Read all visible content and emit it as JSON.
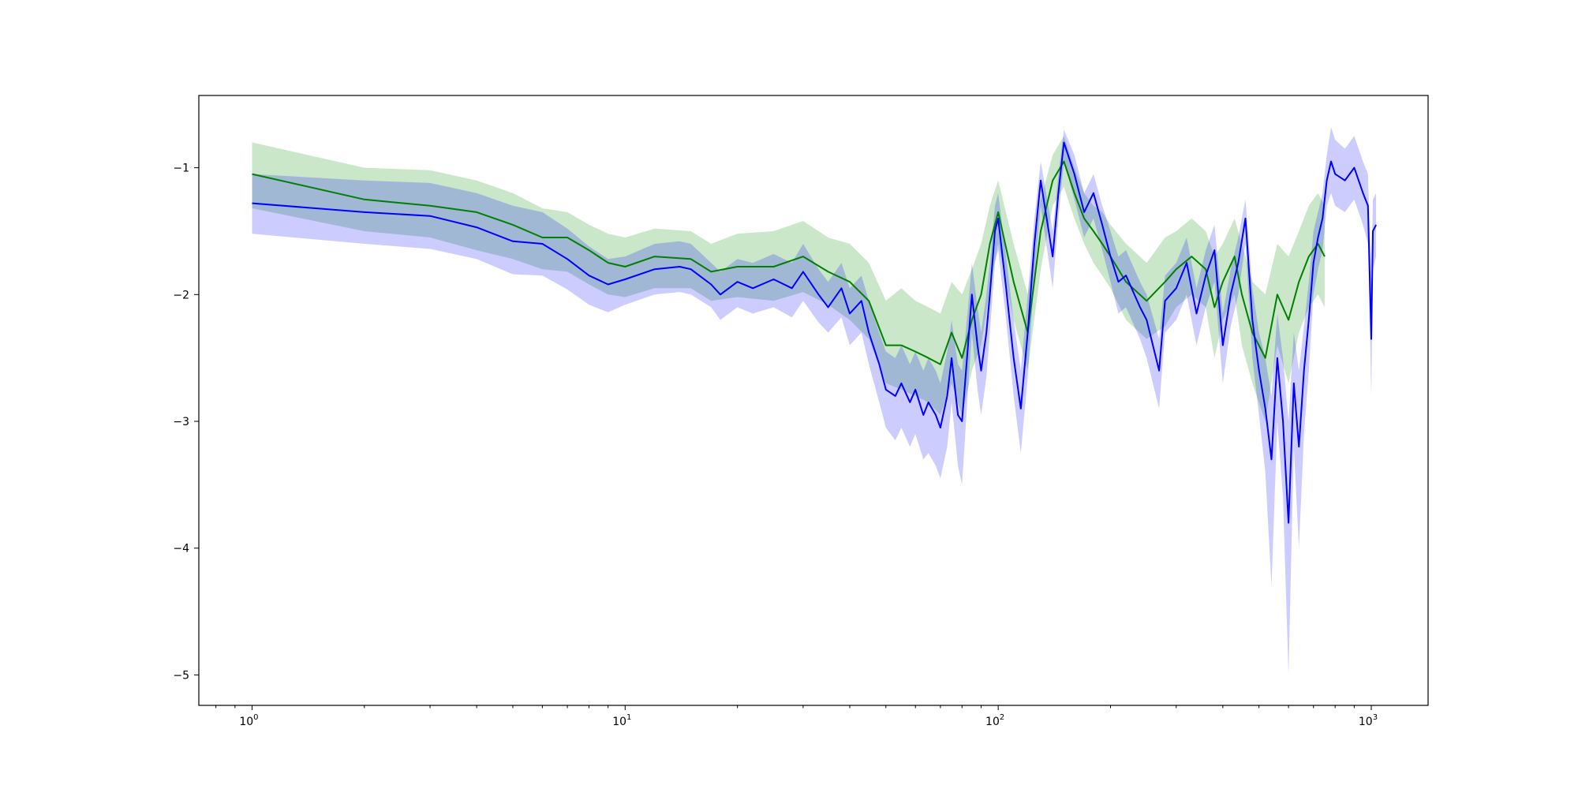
{
  "chart_data": {
    "type": "line",
    "title": "",
    "xlabel": "",
    "ylabel": "",
    "x_scale": "log",
    "xlim": [
      0.72,
      1420
    ],
    "ylim": [
      -5.24,
      -0.43
    ],
    "grid": false,
    "legend": "none",
    "x_ticks": [
      {
        "value": 1,
        "label": "10",
        "exp": "0"
      },
      {
        "value": 10,
        "label": "10",
        "exp": "1"
      },
      {
        "value": 100,
        "label": "10",
        "exp": "2"
      },
      {
        "value": 1000,
        "label": "10",
        "exp": "3"
      }
    ],
    "y_ticks": [
      {
        "value": -1,
        "label": "−1"
      },
      {
        "value": -2,
        "label": "−2"
      },
      {
        "value": -3,
        "label": "−3"
      },
      {
        "value": -4,
        "label": "−4"
      },
      {
        "value": -5,
        "label": "−5"
      }
    ],
    "series": [
      {
        "color": "#008000",
        "band_color": "#2ca02c",
        "band_opacity": 0.25,
        "x": [
          1,
          2,
          3,
          4,
          5,
          6,
          7,
          8,
          9,
          10,
          12,
          15,
          17,
          20,
          25,
          30,
          35,
          40,
          45,
          50,
          55,
          60,
          65,
          70,
          75,
          80,
          85,
          90,
          95,
          100,
          110,
          120,
          130,
          140,
          150,
          160,
          170,
          180,
          190,
          200,
          220,
          250,
          280,
          300,
          330,
          360,
          380,
          400,
          430,
          450,
          480,
          520,
          560,
          600,
          640,
          680,
          720,
          750
        ],
        "values": [
          -1.05,
          -1.25,
          -1.3,
          -1.35,
          -1.45,
          -1.55,
          -1.55,
          -1.65,
          -1.75,
          -1.78,
          -1.7,
          -1.72,
          -1.82,
          -1.78,
          -1.78,
          -1.7,
          -1.82,
          -1.9,
          -2.05,
          -2.4,
          -2.4,
          -2.45,
          -2.5,
          -2.55,
          -2.3,
          -2.5,
          -2.2,
          -2.0,
          -1.6,
          -1.35,
          -1.9,
          -2.3,
          -1.5,
          -1.1,
          -0.95,
          -1.2,
          -1.4,
          -1.5,
          -1.6,
          -1.7,
          -1.9,
          -2.05,
          -1.9,
          -1.8,
          -1.7,
          -1.8,
          -2.1,
          -1.9,
          -1.7,
          -2.0,
          -2.3,
          -2.5,
          -2.0,
          -2.2,
          -1.9,
          -1.7,
          -1.6,
          -1.7
        ],
        "upper": [
          -0.8,
          -1.0,
          -1.02,
          -1.1,
          -1.2,
          -1.32,
          -1.35,
          -1.45,
          -1.52,
          -1.55,
          -1.48,
          -1.5,
          -1.6,
          -1.52,
          -1.5,
          -1.42,
          -1.55,
          -1.6,
          -1.75,
          -2.05,
          -1.95,
          -2.05,
          -2.1,
          -2.15,
          -1.9,
          -2.0,
          -1.8,
          -1.6,
          -1.3,
          -1.1,
          -1.6,
          -2.0,
          -1.25,
          -0.9,
          -0.75,
          -1.0,
          -1.2,
          -1.3,
          -1.35,
          -1.45,
          -1.6,
          -1.75,
          -1.55,
          -1.5,
          -1.4,
          -1.5,
          -1.7,
          -1.6,
          -1.4,
          -1.6,
          -1.9,
          -2.0,
          -1.6,
          -1.7,
          -1.5,
          -1.3,
          -1.2,
          -1.3
        ],
        "lower": [
          -1.32,
          -1.5,
          -1.55,
          -1.65,
          -1.72,
          -1.8,
          -1.82,
          -1.92,
          -2.0,
          -2.02,
          -1.95,
          -1.95,
          -2.05,
          -2.02,
          -2.05,
          -1.98,
          -2.08,
          -2.2,
          -2.35,
          -2.7,
          -2.75,
          -2.8,
          -2.85,
          -2.95,
          -2.7,
          -2.95,
          -2.6,
          -2.4,
          -1.95,
          -1.6,
          -2.2,
          -2.6,
          -1.8,
          -1.3,
          -1.15,
          -1.4,
          -1.6,
          -1.75,
          -1.85,
          -1.95,
          -2.2,
          -2.35,
          -2.25,
          -2.1,
          -2.0,
          -2.1,
          -2.5,
          -2.2,
          -2.0,
          -2.4,
          -2.7,
          -3.0,
          -2.4,
          -2.7,
          -2.3,
          -2.1,
          -2.0,
          -2.1
        ]
      },
      {
        "color": "#0000ff",
        "band_color": "#0000ff",
        "band_opacity": 0.2,
        "x": [
          1,
          2,
          3,
          4,
          5,
          6,
          7,
          8,
          9,
          10,
          12,
          14,
          15,
          17,
          18,
          20,
          22,
          25,
          28,
          30,
          33,
          35,
          38,
          40,
          43,
          45,
          48,
          50,
          53,
          55,
          58,
          60,
          63,
          65,
          68,
          70,
          73,
          75,
          78,
          80,
          83,
          85,
          88,
          90,
          93,
          95,
          98,
          100,
          105,
          110,
          115,
          120,
          125,
          130,
          140,
          145,
          150,
          160,
          170,
          180,
          190,
          200,
          210,
          220,
          240,
          250,
          270,
          280,
          300,
          320,
          340,
          360,
          380,
          400,
          420,
          440,
          460,
          480,
          500,
          520,
          540,
          560,
          580,
          600,
          620,
          640,
          660,
          680,
          700,
          720,
          740,
          760,
          780,
          800,
          850,
          900,
          950,
          980,
          1000,
          1010,
          1030
        ],
        "values": [
          -1.28,
          -1.35,
          -1.38,
          -1.47,
          -1.58,
          -1.6,
          -1.72,
          -1.85,
          -1.92,
          -1.88,
          -1.8,
          -1.78,
          -1.8,
          -1.92,
          -2.0,
          -1.9,
          -1.95,
          -1.88,
          -1.95,
          -1.82,
          -2.0,
          -2.1,
          -1.95,
          -2.15,
          -2.05,
          -2.3,
          -2.55,
          -2.75,
          -2.8,
          -2.7,
          -2.85,
          -2.75,
          -2.95,
          -2.85,
          -2.95,
          -3.05,
          -2.8,
          -2.5,
          -2.95,
          -3.0,
          -2.4,
          -2.0,
          -2.4,
          -2.6,
          -2.3,
          -2.0,
          -1.5,
          -1.4,
          -1.95,
          -2.5,
          -2.9,
          -2.3,
          -1.6,
          -1.1,
          -1.7,
          -1.2,
          -0.8,
          -1.05,
          -1.35,
          -1.2,
          -1.45,
          -1.7,
          -1.9,
          -1.85,
          -2.1,
          -2.2,
          -2.6,
          -2.05,
          -1.95,
          -1.75,
          -2.15,
          -1.85,
          -1.65,
          -2.4,
          -2.0,
          -1.75,
          -1.4,
          -2.2,
          -2.6,
          -2.9,
          -3.3,
          -2.5,
          -3.0,
          -3.8,
          -2.7,
          -3.2,
          -2.6,
          -2.2,
          -1.75,
          -1.55,
          -1.4,
          -1.1,
          -0.95,
          -1.05,
          -1.1,
          -1.0,
          -1.2,
          -1.3,
          -2.35,
          -1.5,
          -1.45
        ],
        "upper": [
          -1.05,
          -1.1,
          -1.12,
          -1.2,
          -1.3,
          -1.35,
          -1.48,
          -1.62,
          -1.72,
          -1.7,
          -1.6,
          -1.58,
          -1.6,
          -1.75,
          -1.82,
          -1.72,
          -1.75,
          -1.68,
          -1.75,
          -1.6,
          -1.8,
          -1.9,
          -1.75,
          -1.95,
          -1.85,
          -2.05,
          -2.3,
          -2.45,
          -2.5,
          -2.4,
          -2.55,
          -2.45,
          -2.6,
          -2.5,
          -2.6,
          -2.7,
          -2.45,
          -2.2,
          -2.55,
          -2.6,
          -2.1,
          -1.75,
          -2.1,
          -2.3,
          -2.0,
          -1.75,
          -1.3,
          -1.2,
          -1.7,
          -2.2,
          -2.6,
          -2.0,
          -1.4,
          -0.95,
          -1.5,
          -1.05,
          -0.7,
          -0.9,
          -1.2,
          -1.05,
          -1.3,
          -1.5,
          -1.7,
          -1.65,
          -1.9,
          -2.0,
          -2.35,
          -1.85,
          -1.75,
          -1.55,
          -1.95,
          -1.65,
          -1.45,
          -2.15,
          -1.8,
          -1.55,
          -1.25,
          -1.95,
          -2.3,
          -2.5,
          -2.8,
          -2.15,
          -2.5,
          -3.0,
          -2.3,
          -2.6,
          -2.25,
          -1.9,
          -1.5,
          -1.35,
          -1.2,
          -0.9,
          -0.68,
          -0.78,
          -0.85,
          -0.75,
          -0.95,
          -1.05,
          -1.95,
          -1.25,
          -1.2
        ],
        "lower": [
          -1.52,
          -1.6,
          -1.64,
          -1.72,
          -1.84,
          -1.85,
          -1.96,
          -2.08,
          -2.14,
          -2.08,
          -2.0,
          -1.98,
          -2.0,
          -2.1,
          -2.2,
          -2.1,
          -2.15,
          -2.1,
          -2.18,
          -2.05,
          -2.22,
          -2.3,
          -2.18,
          -2.4,
          -2.3,
          -2.55,
          -2.85,
          -3.05,
          -3.15,
          -3.05,
          -3.2,
          -3.1,
          -3.3,
          -3.25,
          -3.35,
          -3.45,
          -3.2,
          -2.85,
          -3.35,
          -3.5,
          -2.75,
          -2.3,
          -2.75,
          -2.95,
          -2.65,
          -2.3,
          -1.75,
          -1.65,
          -2.2,
          -2.8,
          -3.25,
          -2.65,
          -1.85,
          -1.3,
          -1.95,
          -1.4,
          -0.95,
          -1.25,
          -1.55,
          -1.4,
          -1.65,
          -1.9,
          -2.15,
          -2.1,
          -2.35,
          -2.5,
          -2.9,
          -2.3,
          -2.2,
          -2.0,
          -2.4,
          -2.1,
          -1.9,
          -2.7,
          -2.25,
          -2.0,
          -1.6,
          -2.5,
          -2.95,
          -3.4,
          -4.3,
          -3.0,
          -3.6,
          -5.0,
          -3.2,
          -4.0,
          -3.1,
          -2.6,
          -2.0,
          -1.8,
          -1.65,
          -1.3,
          -1.2,
          -1.3,
          -1.35,
          -1.25,
          -1.45,
          -1.6,
          -2.8,
          -1.8,
          -1.7
        ]
      }
    ]
  }
}
